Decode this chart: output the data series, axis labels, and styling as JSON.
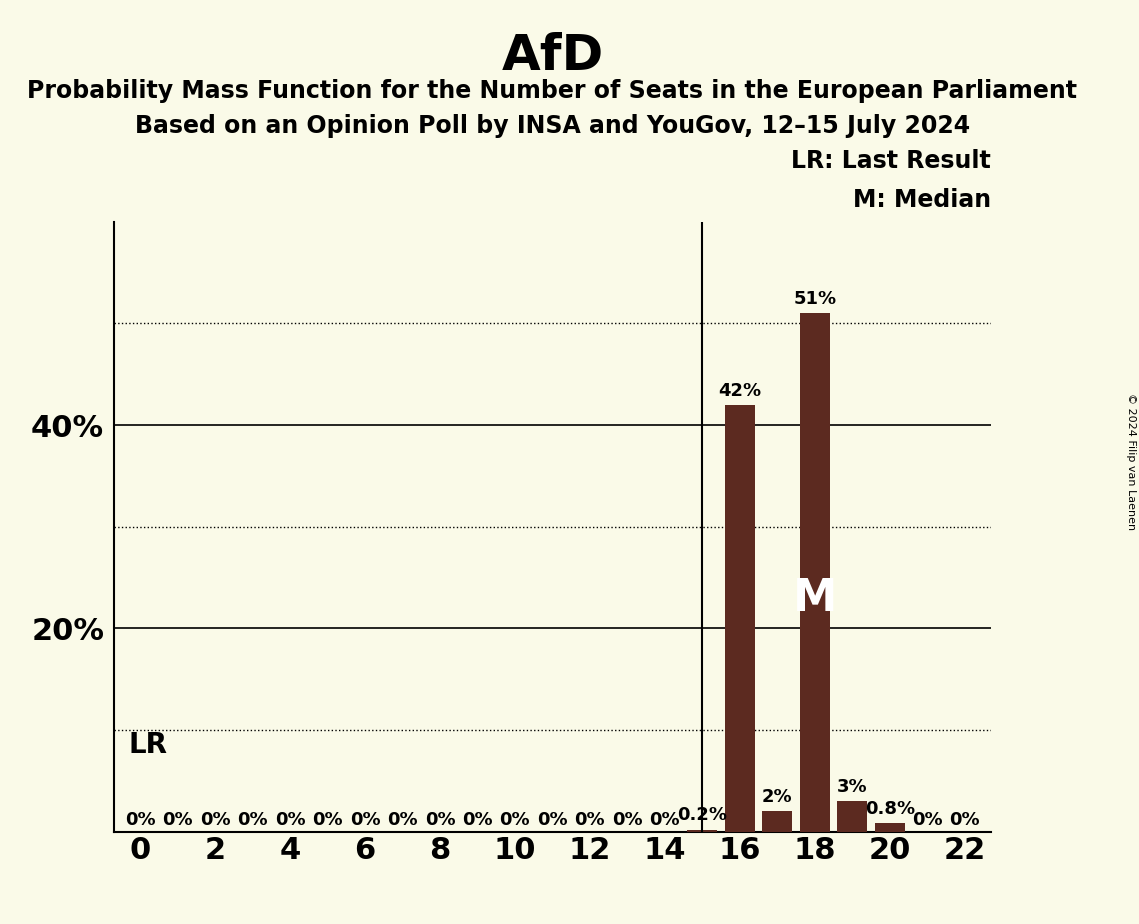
{
  "title": "AfD",
  "subtitle1": "Probability Mass Function for the Number of Seats in the European Parliament",
  "subtitle2": "Based on an Opinion Poll by INSA and YouGov, 12–15 July 2024",
  "copyright": "© 2024 Filip van Laenen",
  "background_color": "#FAFAE8",
  "bar_color": "#5C2A20",
  "seats": [
    0,
    1,
    2,
    3,
    4,
    5,
    6,
    7,
    8,
    9,
    10,
    11,
    12,
    13,
    14,
    15,
    16,
    17,
    18,
    19,
    20,
    21,
    22
  ],
  "probabilities": [
    0.0,
    0.0,
    0.0,
    0.0,
    0.0,
    0.0,
    0.0,
    0.0,
    0.0,
    0.0,
    0.0,
    0.0,
    0.0,
    0.0,
    0.0,
    0.2,
    42.0,
    2.0,
    51.0,
    3.0,
    0.8,
    0.0,
    0.0
  ],
  "last_result": 15,
  "median": 18,
  "ylim": [
    0,
    60
  ],
  "yticks": [
    0,
    10,
    20,
    30,
    40,
    50,
    60
  ],
  "ytick_labels_shown": [
    20,
    40
  ],
  "solid_grid": [
    20,
    40
  ],
  "dotted_grid": [
    10,
    30,
    50
  ],
  "title_fontsize": 36,
  "subtitle_fontsize": 17,
  "axis_label_fontsize": 22,
  "bar_label_fontsize": 13,
  "legend_fontsize": 17,
  "lr_label": "LR",
  "lr_label_fontsize": 20,
  "median_label": "M",
  "median_label_fontsize": 32,
  "legend_text_lr": "LR: Last Result",
  "legend_text_m": "M: Median"
}
